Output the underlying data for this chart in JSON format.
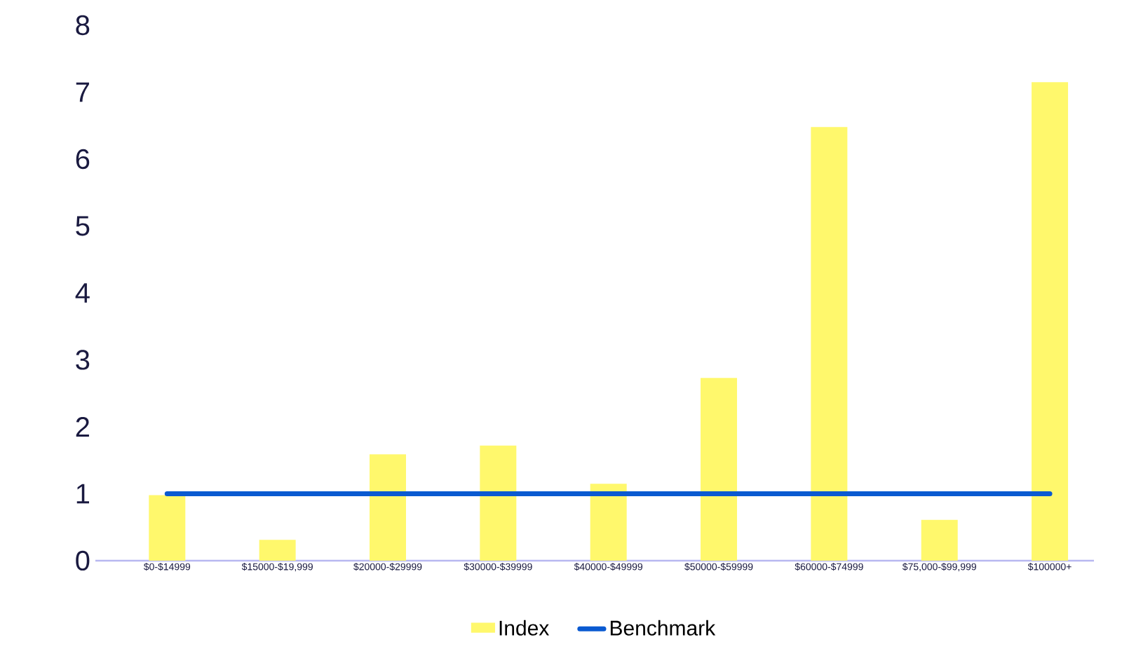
{
  "chart_data": {
    "type": "bar",
    "categories": [
      "$0-$14999",
      "$15000-$19,999",
      "$20000-$29999",
      "$30000-$39999",
      "$40000-$49999",
      "$50000-$59999",
      "$60000-$74999",
      "$75,000-$99,999",
      "$100000+"
    ],
    "series": [
      {
        "name": "Index",
        "color": "#fff86c",
        "values": [
          0.98,
          0.31,
          1.59,
          1.72,
          1.15,
          2.73,
          6.48,
          0.61,
          7.15
        ]
      },
      {
        "name": "Benchmark",
        "type": "line",
        "color": "#0a5ad1",
        "values": [
          1,
          1,
          1,
          1,
          1,
          1,
          1,
          1,
          1
        ]
      }
    ],
    "ylim": [
      0,
      8
    ],
    "yticks": [
      0,
      1,
      2,
      3,
      4,
      5,
      6,
      7,
      8
    ],
    "grid": false,
    "legend": "bottom"
  }
}
